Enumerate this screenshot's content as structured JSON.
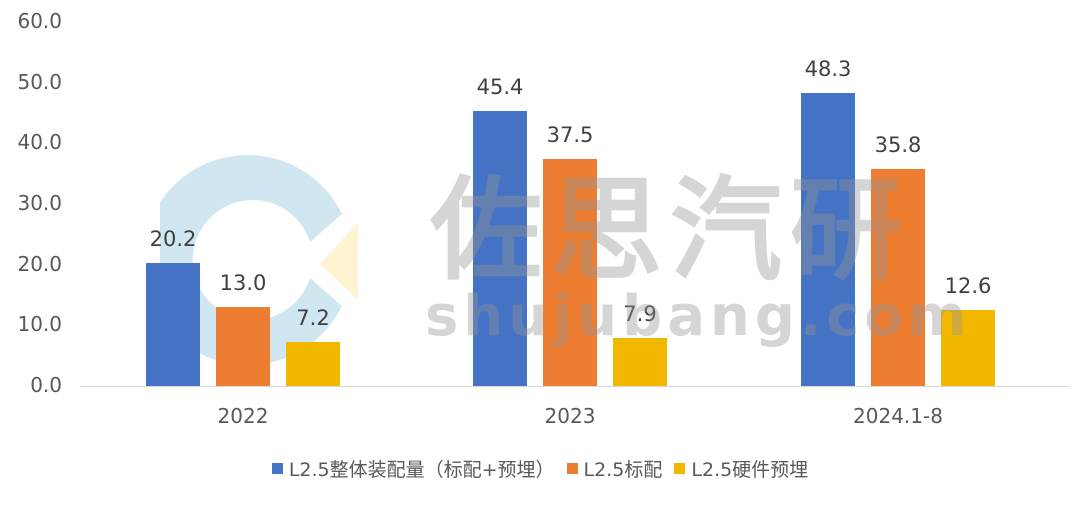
{
  "chart_data": {
    "type": "bar",
    "title": "",
    "xlabel": "",
    "ylabel": "",
    "ylim": [
      0,
      60
    ],
    "yticks": [
      "0.0",
      "10.0",
      "20.0",
      "30.0",
      "40.0",
      "50.0",
      "60.0"
    ],
    "grid": false,
    "legend_position": "bottom",
    "categories": [
      "2022",
      "2023",
      "2024.1-8"
    ],
    "series": [
      {
        "name": "L2.5整体装配量（标配+预埋）",
        "color": "#4472C4",
        "values": [
          20.2,
          45.4,
          48.3
        ],
        "labels": [
          "20.2",
          "45.4",
          "48.3"
        ]
      },
      {
        "name": "L2.5标配",
        "color": "#ED7D31",
        "values": [
          13.0,
          37.5,
          35.8
        ],
        "labels": [
          "13.0",
          "37.5",
          "35.8"
        ]
      },
      {
        "name": "L2.5硬件预埋",
        "color": "#F2B800",
        "values": [
          7.2,
          7.9,
          12.6
        ],
        "labels": [
          "7.2",
          "7.9",
          "12.6"
        ]
      }
    ]
  },
  "watermark": {
    "cn_text": "佐思汽研",
    "en_text": "shujubang.com"
  }
}
